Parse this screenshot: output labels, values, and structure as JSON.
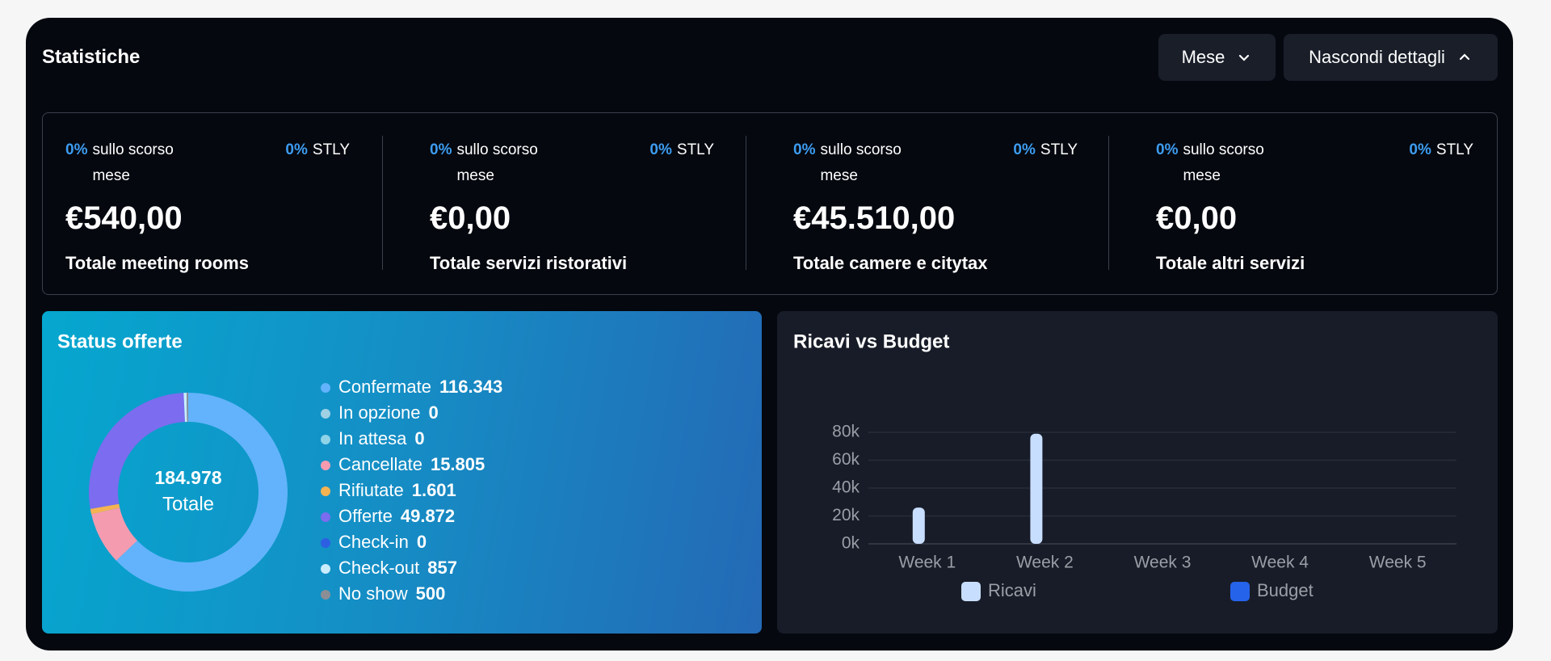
{
  "header": {
    "title": "Statistiche",
    "period_button": "Mese",
    "details_button": "Nascondi dettagli"
  },
  "kpis": [
    {
      "change": "0%",
      "change_label": "sullo scorso mese",
      "stly": "0%",
      "stly_label": "STLY",
      "value": "€540,00",
      "label": "Totale meeting rooms"
    },
    {
      "change": "0%",
      "change_label": "sullo scorso mese",
      "stly": "0%",
      "stly_label": "STLY",
      "value": "€0,00",
      "label": "Totale servizi ristorativi"
    },
    {
      "change": "0%",
      "change_label": "sullo scorso mese",
      "stly": "0%",
      "stly_label": "STLY",
      "value": "€45.510,00",
      "label": "Totale camere e citytax"
    },
    {
      "change": "0%",
      "change_label": "sullo scorso mese",
      "stly": "0%",
      "stly_label": "STLY",
      "value": "€0,00",
      "label": "Totale altri servizi"
    }
  ],
  "chart_data": [
    {
      "type": "donut",
      "title": "Status offerte",
      "categories": [
        "Confermate",
        "In opzione",
        "In attesa",
        "Cancellate",
        "Rifiutate",
        "Offerte",
        "Check-in",
        "Check-out",
        "No show"
      ],
      "values": [
        116343,
        0,
        0,
        15805,
        1601,
        49872,
        0,
        857,
        500
      ],
      "value_labels": [
        "116.343",
        "0",
        "0",
        "15.805",
        "1.601",
        "49.872",
        "0",
        "857",
        "500"
      ],
      "colors": [
        "#62b3fb",
        "#9fd0e4",
        "#8fd3e8",
        "#f59bb0",
        "#f6b352",
        "#7c6cef",
        "#2d5fe3",
        "#c9ecfd",
        "#8b8f95"
      ],
      "center_value": "184.978",
      "center_label": "Totale"
    },
    {
      "type": "bar",
      "title": "Ricavi vs Budget",
      "categories": [
        "Week 1",
        "Week 2",
        "Week 3",
        "Week 4",
        "Week 5"
      ],
      "series": [
        {
          "name": "Ricavi",
          "color": "#c8deff",
          "values": [
            26000,
            79000,
            0,
            0,
            0
          ]
        },
        {
          "name": "Budget",
          "color": "#2563eb",
          "values": [
            0,
            0,
            0,
            0,
            0
          ]
        }
      ],
      "ylim": [
        0,
        80000
      ],
      "yticks": [
        {
          "value": 0,
          "label": "0k"
        },
        {
          "value": 20000,
          "label": "20k"
        },
        {
          "value": 40000,
          "label": "40k"
        },
        {
          "value": 60000,
          "label": "60k"
        },
        {
          "value": 80000,
          "label": "80k"
        }
      ],
      "grid": true
    }
  ]
}
